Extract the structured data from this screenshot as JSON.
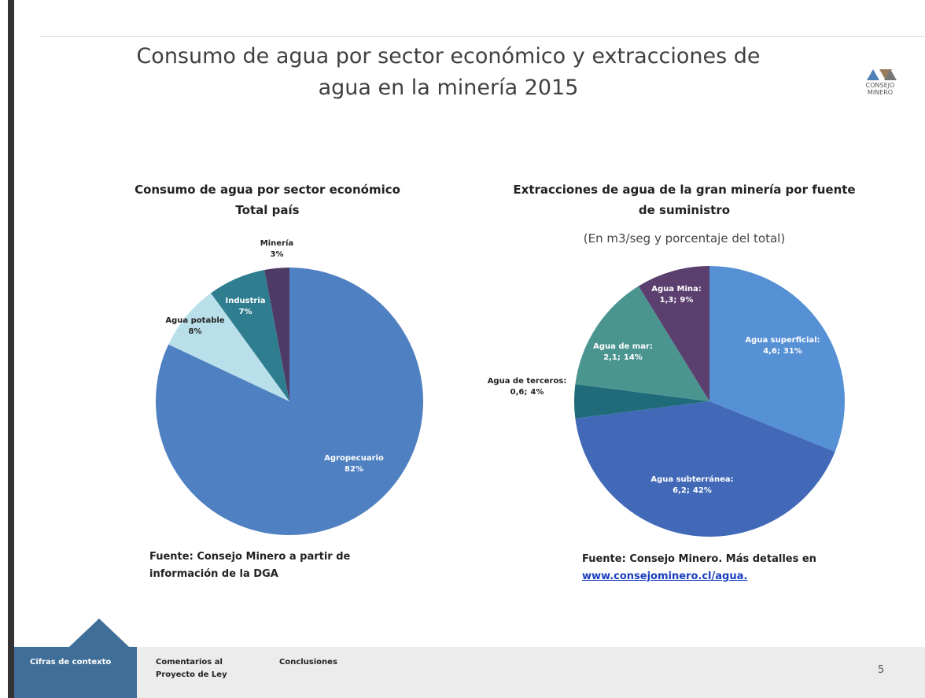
{
  "slide": {
    "title": "Consumo de agua por sector económico y extracciones de agua en la minería 2015",
    "logo": [
      "CONSEJO",
      "MINERO"
    ],
    "nav": [
      "Cifras de contexto",
      "Comentarios al Proyecto de Ley",
      "Conclusiones"
    ],
    "page_number": "5"
  },
  "chart_data": [
    {
      "type": "pie",
      "title": "Consumo de agua por sector económico",
      "subtitle": "Total país",
      "categories": [
        "Agropecuario",
        "Agua potable",
        "Industria",
        "Minería"
      ],
      "values": [
        82,
        8,
        7,
        3
      ],
      "value_labels": [
        "82%",
        "8%",
        "7%",
        "3%"
      ],
      "colors": [
        "#4f80c1",
        "#b9e0ea",
        "#2f7e90",
        "#4e3a66"
      ],
      "source": [
        "Fuente: Consejo Minero a partir de",
        "información de la  DGA"
      ]
    },
    {
      "type": "pie",
      "title": "Extracciones de agua de la gran minería por fuente de suministro",
      "subtitle": "(En m3/seg y porcentaje del total)",
      "categories": [
        "Agua superficial:",
        "Agua subterránea:",
        "Agua de terceros:",
        "Agua de mar:",
        "Agua Mina:"
      ],
      "values": [
        4.6,
        6.2,
        0.6,
        2.1,
        1.3
      ],
      "value_labels": [
        "4,6;",
        "6,2;",
        "0,6;",
        "2,1;",
        "1,3;"
      ],
      "shares": [
        31,
        42,
        4,
        14,
        9
      ],
      "share_labels": [
        "31%",
        "42%",
        "4%",
        "14%",
        "9%"
      ],
      "colors": [
        "#5690d5",
        "#4169b8",
        "#1f6b7a",
        "#4b9591",
        "#5b3f6e"
      ],
      "source": [
        "Fuente: Consejo Minero. Más detalles en"
      ],
      "link": "www.consejominero.cl/agua."
    }
  ]
}
